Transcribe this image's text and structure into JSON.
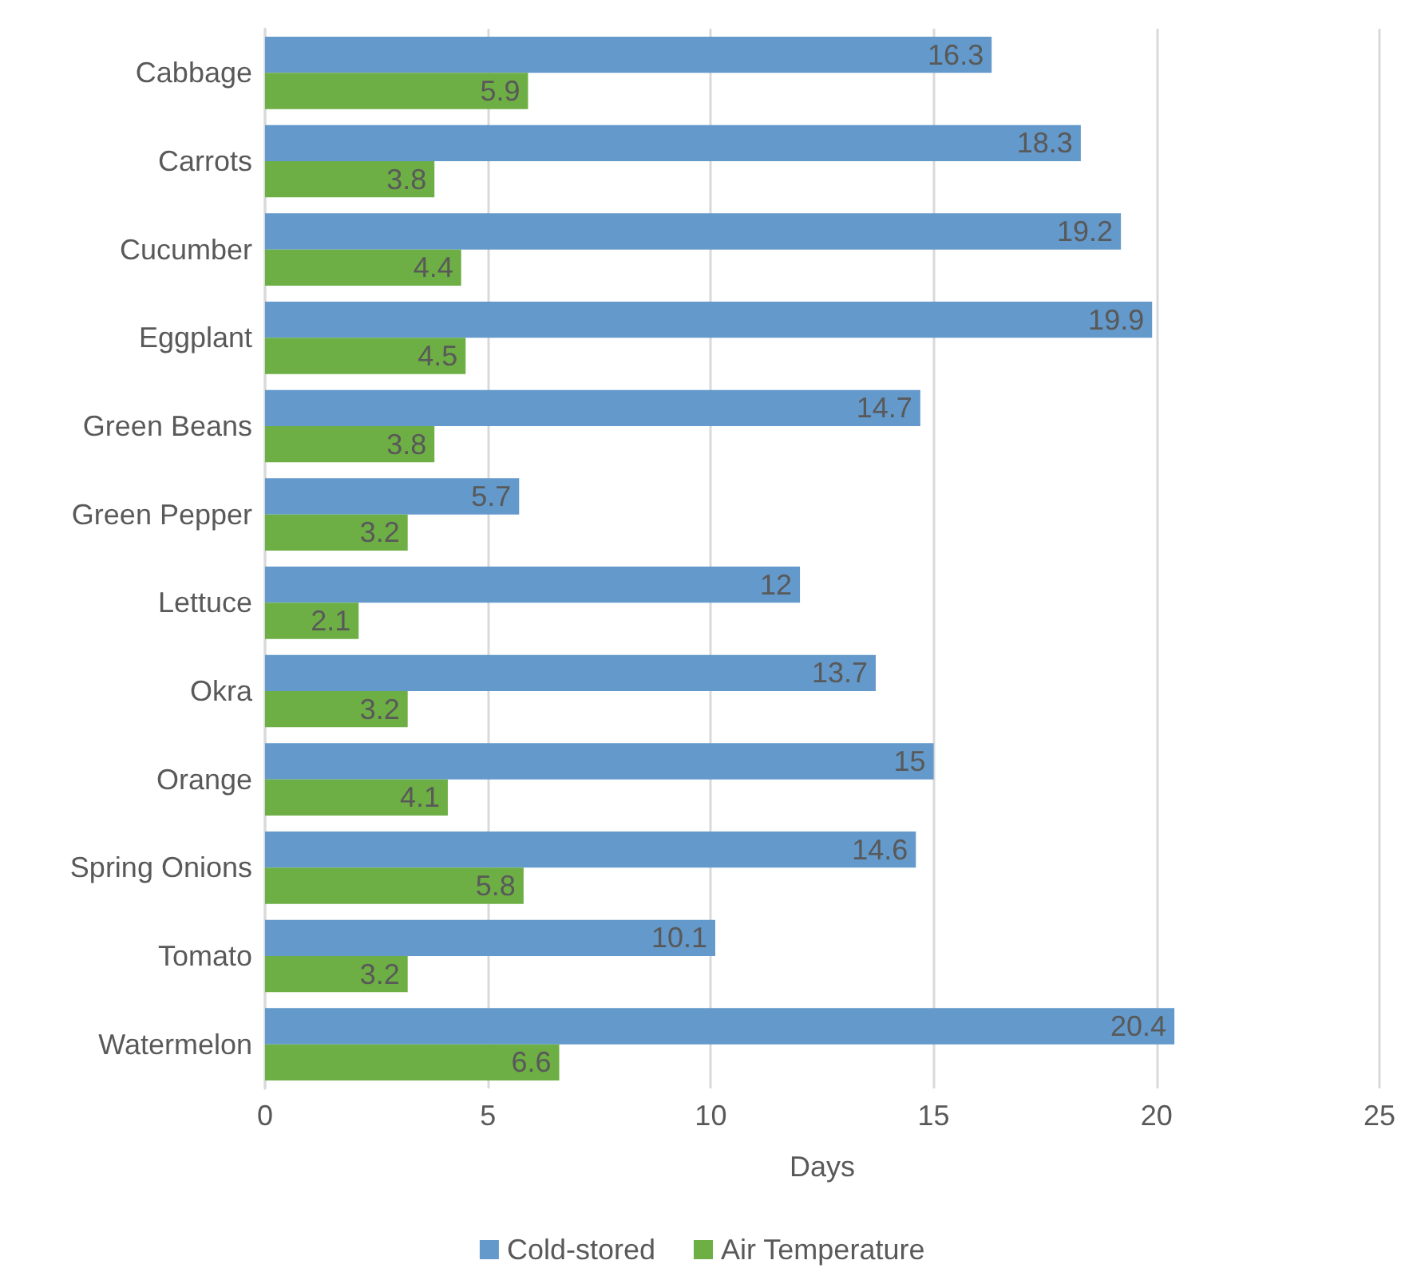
{
  "chart_data": {
    "type": "bar",
    "orientation": "horizontal",
    "xlabel": "Days",
    "categories": [
      "Cabbage",
      "Carrots",
      "Cucumber",
      "Eggplant",
      "Green Beans",
      "Green Pepper",
      "Lettuce",
      "Okra",
      "Orange",
      "Spring Onions",
      "Tomato",
      "Watermelon"
    ],
    "series": [
      {
        "name": "Cold-stored",
        "color": "#6399cb",
        "values": [
          16.3,
          18.3,
          19.2,
          19.9,
          14.7,
          5.7,
          12,
          13.7,
          15,
          14.6,
          10.1,
          20.4
        ]
      },
      {
        "name": "Air Temperature",
        "color": "#6daf44",
        "values": [
          5.9,
          3.8,
          4.4,
          4.5,
          3.8,
          3.2,
          2.1,
          3.2,
          4.1,
          5.8,
          3.2,
          6.6
        ]
      }
    ],
    "xlim": [
      0,
      25
    ],
    "xticks": [
      0,
      5,
      10,
      15,
      20,
      25
    ],
    "grid": "x",
    "legend": "bottom",
    "data_labels": true
  }
}
